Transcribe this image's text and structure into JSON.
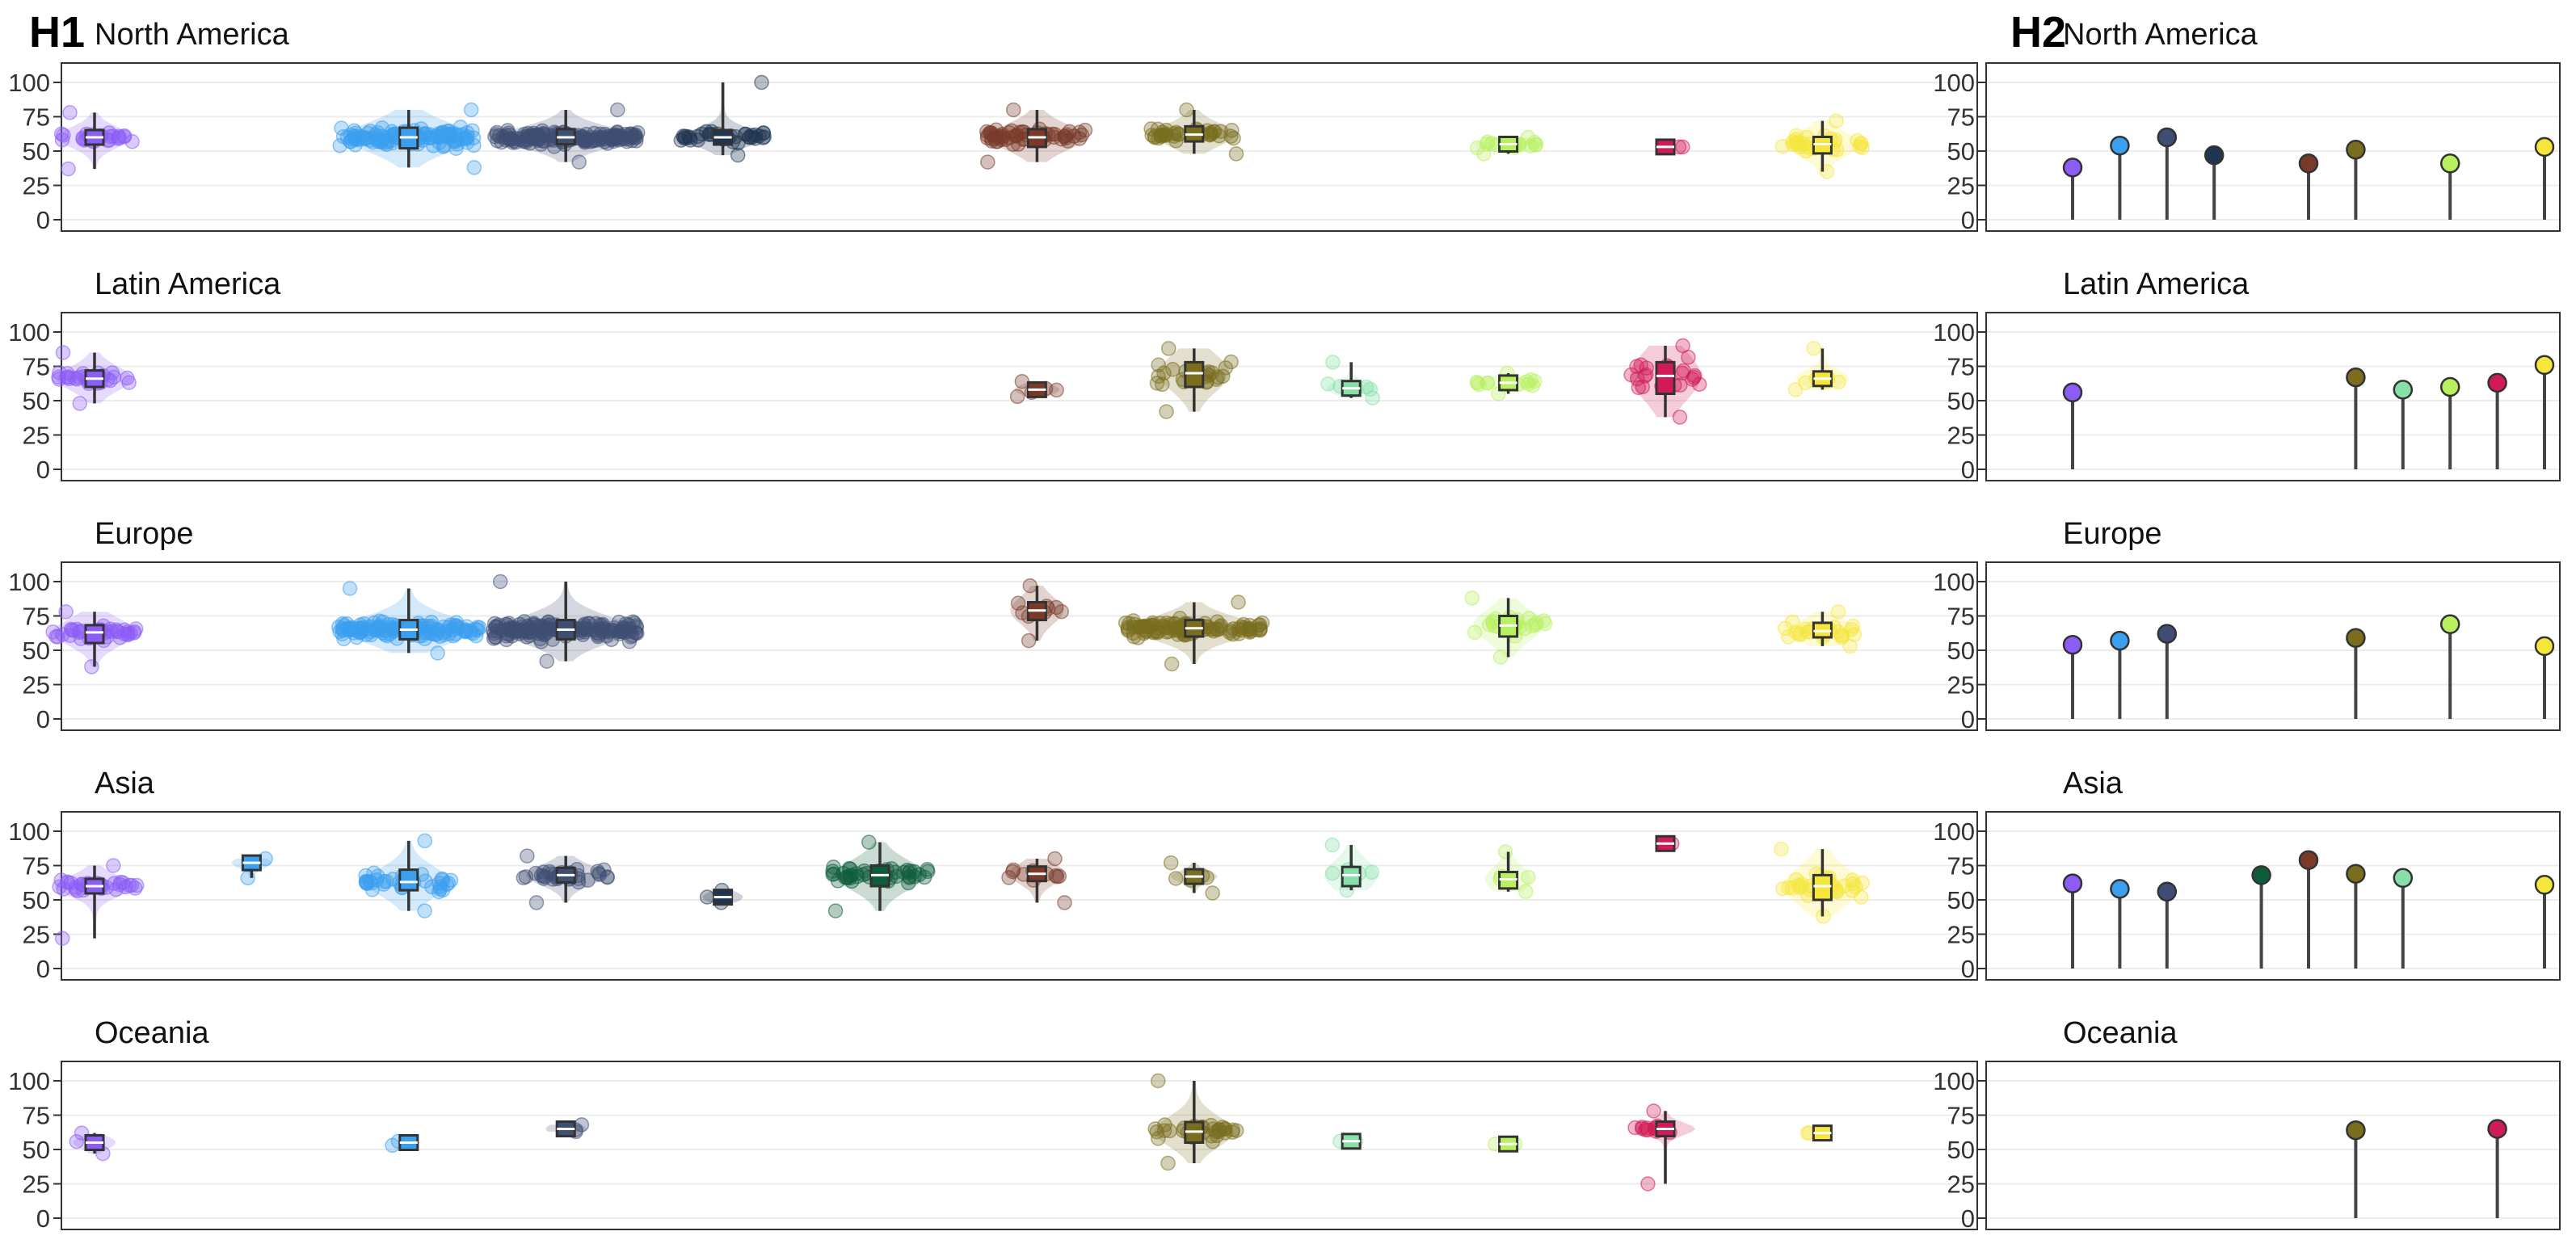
{
  "figure": {
    "tags": [
      "H1",
      "H2"
    ]
  },
  "colors": {
    "cat1": "#8B5CF6",
    "cat2": "#3B9FEF",
    "cat3": "#3F4F73",
    "cat4": "#1F3552",
    "cat5": "#0F5C3C",
    "cat6": "#7A3A2A",
    "cat7": "#7A6E1E",
    "cat8": "#86E0A8",
    "cat9": "#B8F060",
    "cat10": "#D11B56",
    "cat11": "#F5E63A",
    "axis": "#333333",
    "grid": "#ececec",
    "stem": "#444444"
  },
  "chart_data": [
    {
      "type": "box",
      "subtype": "violin-box-jitter",
      "tag": "H1",
      "categories": [
        "cat1",
        "cat2",
        "cat3",
        "cat4",
        "cat5",
        "cat6",
        "cat7",
        "cat8",
        "cat9",
        "cat10",
        "cat11",
        "cat12"
      ],
      "ylim": [
        0,
        100
      ],
      "yticks": [
        0,
        25,
        50,
        75,
        100
      ],
      "xlabel": "",
      "ylabel": "",
      "grid": true,
      "facets": [
        {
          "title": "North America",
          "groups": [
            {
              "slot": 1,
              "color": "cat1",
              "median": 60,
              "q1": 55,
              "q3": 65,
              "min": 37,
              "max": 78,
              "n": 30
            },
            {
              "slot": 3,
              "color": "cat2",
              "median": 60,
              "q1": 52,
              "q3": 67,
              "min": 38,
              "max": 80,
              "n": 120
            },
            {
              "slot": 4,
              "color": "cat3",
              "median": 60,
              "q1": 55,
              "q3": 66,
              "min": 42,
              "max": 80,
              "n": 160
            },
            {
              "slot": 5,
              "color": "cat4",
              "median": 60,
              "q1": 56,
              "q3": 65,
              "min": 47,
              "max": 100,
              "n": 40
            },
            {
              "slot": 7,
              "color": "cat6",
              "median": 60,
              "q1": 53,
              "q3": 66,
              "min": 42,
              "max": 80,
              "n": 60
            },
            {
              "slot": 8,
              "color": "cat7",
              "median": 62,
              "q1": 57,
              "q3": 68,
              "min": 48,
              "max": 80,
              "n": 40
            },
            {
              "slot": 10,
              "color": "cat9",
              "median": 55,
              "q1": 52,
              "q3": 58,
              "min": 48,
              "max": 60,
              "n": 20
            },
            {
              "slot": 11,
              "color": "cat10",
              "median": 53,
              "q1": 53,
              "q3": 53,
              "min": 53,
              "max": 53,
              "n": 2
            },
            {
              "slot": 12,
              "color": "cat11",
              "median": 55,
              "q1": 48,
              "q3": 60,
              "min": 35,
              "max": 72,
              "n": 30
            }
          ]
        },
        {
          "title": "Latin America",
          "groups": [
            {
              "slot": 1,
              "color": "cat1",
              "median": 66,
              "q1": 60,
              "q3": 72,
              "min": 48,
              "max": 85,
              "n": 30
            },
            {
              "slot": 7,
              "color": "cat6",
              "median": 58,
              "q1": 56,
              "q3": 60,
              "min": 53,
              "max": 64,
              "n": 5
            },
            {
              "slot": 8,
              "color": "cat7",
              "median": 70,
              "q1": 60,
              "q3": 78,
              "min": 42,
              "max": 88,
              "n": 25
            },
            {
              "slot": 9,
              "color": "cat8",
              "median": 59,
              "q1": 56,
              "q3": 62,
              "min": 52,
              "max": 78,
              "n": 8
            },
            {
              "slot": 10,
              "color": "cat9",
              "median": 63,
              "q1": 60,
              "q3": 65,
              "min": 55,
              "max": 70,
              "n": 15
            },
            {
              "slot": 11,
              "color": "cat10",
              "median": 68,
              "q1": 55,
              "q3": 78,
              "min": 38,
              "max": 90,
              "n": 25
            },
            {
              "slot": 12,
              "color": "cat11",
              "median": 66,
              "q1": 62,
              "q3": 70,
              "min": 58,
              "max": 88,
              "n": 10
            }
          ]
        },
        {
          "title": "Europe",
          "groups": [
            {
              "slot": 1,
              "color": "cat1",
              "median": 63,
              "q1": 55,
              "q3": 68,
              "min": 38,
              "max": 78,
              "n": 40
            },
            {
              "slot": 3,
              "color": "cat2",
              "median": 65,
              "q1": 58,
              "q3": 72,
              "min": 48,
              "max": 95,
              "n": 130
            },
            {
              "slot": 4,
              "color": "cat3",
              "median": 65,
              "q1": 58,
              "q3": 72,
              "min": 42,
              "max": 100,
              "n": 160
            },
            {
              "slot": 7,
              "color": "cat6",
              "median": 79,
              "q1": 72,
              "q3": 85,
              "min": 57,
              "max": 97,
              "n": 10
            },
            {
              "slot": 8,
              "color": "cat7",
              "median": 66,
              "q1": 60,
              "q3": 72,
              "min": 40,
              "max": 85,
              "n": 120
            },
            {
              "slot": 10,
              "color": "cat9",
              "median": 68,
              "q1": 60,
              "q3": 75,
              "min": 45,
              "max": 88,
              "n": 25
            },
            {
              "slot": 12,
              "color": "cat11",
              "median": 64,
              "q1": 60,
              "q3": 70,
              "min": 53,
              "max": 78,
              "n": 25
            }
          ]
        },
        {
          "title": "Asia",
          "groups": [
            {
              "slot": 1,
              "color": "cat1",
              "median": 60,
              "q1": 55,
              "q3": 65,
              "min": 22,
              "max": 75,
              "n": 35
            },
            {
              "slot": 2,
              "color": "cat2",
              "median": 77,
              "q1": 74,
              "q3": 79,
              "min": 66,
              "max": 80,
              "n": 3
            },
            {
              "slot": 3,
              "color": "cat2",
              "median": 63,
              "q1": 57,
              "q3": 72,
              "min": 42,
              "max": 93,
              "n": 40
            },
            {
              "slot": 4,
              "color": "cat3",
              "median": 68,
              "q1": 63,
              "q3": 73,
              "min": 48,
              "max": 82,
              "n": 35
            },
            {
              "slot": 5,
              "color": "cat4",
              "median": 52,
              "q1": 52,
              "q3": 52,
              "min": 48,
              "max": 57,
              "n": 3
            },
            {
              "slot": 6,
              "color": "cat5",
              "median": 68,
              "q1": 60,
              "q3": 75,
              "min": 42,
              "max": 92,
              "n": 50
            },
            {
              "slot": 7,
              "color": "cat6",
              "median": 69,
              "q1": 62,
              "q3": 72,
              "min": 48,
              "max": 80,
              "n": 12
            },
            {
              "slot": 8,
              "color": "cat7",
              "median": 67,
              "q1": 65,
              "q3": 70,
              "min": 55,
              "max": 77,
              "n": 6
            },
            {
              "slot": 9,
              "color": "cat8",
              "median": 68,
              "q1": 60,
              "q3": 74,
              "min": 57,
              "max": 90,
              "n": 10
            },
            {
              "slot": 10,
              "color": "cat9",
              "median": 65,
              "q1": 58,
              "q3": 70,
              "min": 56,
              "max": 85,
              "n": 6
            },
            {
              "slot": 11,
              "color": "cat10",
              "median": 91,
              "q1": 91,
              "q3": 91,
              "min": 91,
              "max": 91,
              "n": 1
            },
            {
              "slot": 12,
              "color": "cat11",
              "median": 60,
              "q1": 50,
              "q3": 68,
              "min": 38,
              "max": 87,
              "n": 35
            }
          ]
        },
        {
          "title": "Oceania",
          "groups": [
            {
              "slot": 1,
              "color": "cat1",
              "median": 55,
              "q1": 52,
              "q3": 58,
              "min": 47,
              "max": 62,
              "n": 4
            },
            {
              "slot": 3,
              "color": "cat2",
              "median": 55,
              "q1": 55,
              "q3": 55,
              "min": 53,
              "max": 56,
              "n": 2
            },
            {
              "slot": 4,
              "color": "cat3",
              "median": 65,
              "q1": 64,
              "q3": 66,
              "min": 63,
              "max": 68,
              "n": 3
            },
            {
              "slot": 8,
              "color": "cat7",
              "median": 63,
              "q1": 55,
              "q3": 70,
              "min": 40,
              "max": 100,
              "n": 35
            },
            {
              "slot": 9,
              "color": "cat8",
              "median": 56,
              "q1": 56,
              "q3": 56,
              "min": 56,
              "max": 56,
              "n": 2
            },
            {
              "slot": 10,
              "color": "cat9",
              "median": 54,
              "q1": 54,
              "q3": 54,
              "min": 54,
              "max": 54,
              "n": 2
            },
            {
              "slot": 11,
              "color": "cat10",
              "median": 65,
              "q1": 62,
              "q3": 68,
              "min": 25,
              "max": 78,
              "n": 15
            },
            {
              "slot": 12,
              "color": "cat11",
              "median": 62,
              "q1": 62,
              "q3": 62,
              "min": 62,
              "max": 62,
              "n": 2
            }
          ]
        }
      ]
    },
    {
      "type": "lollipop",
      "tag": "H2",
      "ylim": [
        0,
        100
      ],
      "yticks": [
        0,
        25,
        50,
        75,
        100
      ],
      "xlabel": "",
      "ylabel": "",
      "grid": true,
      "facets": [
        {
          "title": "North America",
          "points": [
            {
              "slot": 1,
              "color": "cat1",
              "value": 38
            },
            {
              "slot": 2,
              "color": "cat2",
              "value": 54
            },
            {
              "slot": 3,
              "color": "cat3",
              "value": 60
            },
            {
              "slot": 4,
              "color": "cat4",
              "value": 47
            },
            {
              "slot": 6,
              "color": "cat6",
              "value": 41
            },
            {
              "slot": 7,
              "color": "cat7",
              "value": 51
            },
            {
              "slot": 9,
              "color": "cat9",
              "value": 41
            },
            {
              "slot": 11,
              "color": "cat11",
              "value": 53
            }
          ]
        },
        {
          "title": "Latin America",
          "points": [
            {
              "slot": 1,
              "color": "cat1",
              "value": 56
            },
            {
              "slot": 7,
              "color": "cat7",
              "value": 67
            },
            {
              "slot": 8,
              "color": "cat8",
              "value": 58
            },
            {
              "slot": 9,
              "color": "cat9",
              "value": 60
            },
            {
              "slot": 10,
              "color": "cat10",
              "value": 63
            },
            {
              "slot": 11,
              "color": "cat11",
              "value": 76
            }
          ]
        },
        {
          "title": "Europe",
          "points": [
            {
              "slot": 1,
              "color": "cat1",
              "value": 54
            },
            {
              "slot": 2,
              "color": "cat2",
              "value": 57
            },
            {
              "slot": 3,
              "color": "cat3",
              "value": 62
            },
            {
              "slot": 7,
              "color": "cat7",
              "value": 59
            },
            {
              "slot": 9,
              "color": "cat9",
              "value": 69
            },
            {
              "slot": 11,
              "color": "cat11",
              "value": 53
            }
          ]
        },
        {
          "title": "Asia",
          "points": [
            {
              "slot": 1,
              "color": "cat1",
              "value": 62
            },
            {
              "slot": 2,
              "color": "cat2",
              "value": 58
            },
            {
              "slot": 3,
              "color": "cat3",
              "value": 56
            },
            {
              "slot": 5,
              "color": "cat5",
              "value": 68
            },
            {
              "slot": 6,
              "color": "cat6",
              "value": 79
            },
            {
              "slot": 7,
              "color": "cat7",
              "value": 69
            },
            {
              "slot": 8,
              "color": "cat8",
              "value": 66
            },
            {
              "slot": 11,
              "color": "cat11",
              "value": 61
            }
          ]
        },
        {
          "title": "Oceania",
          "points": [
            {
              "slot": 7,
              "color": "cat7",
              "value": 64
            },
            {
              "slot": 10,
              "color": "cat10",
              "value": 65
            }
          ]
        }
      ]
    }
  ]
}
